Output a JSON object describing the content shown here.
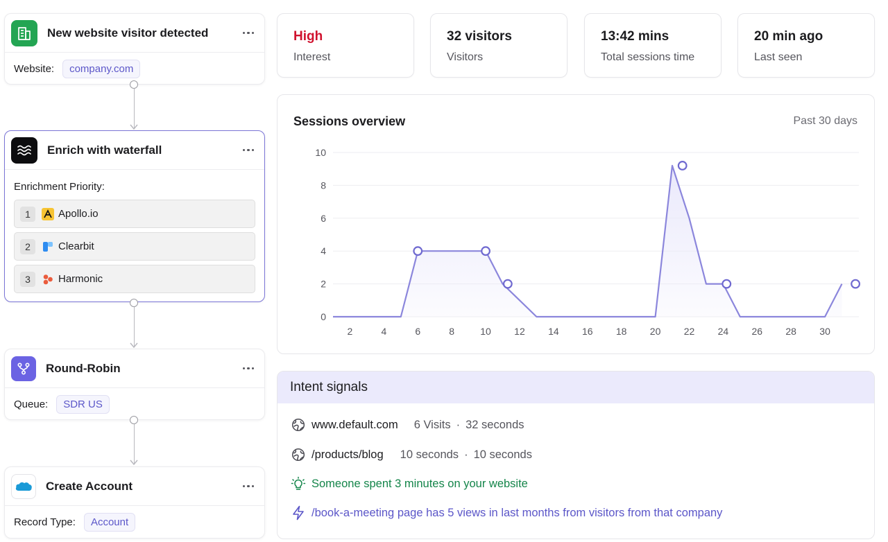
{
  "workflow": {
    "visitor": {
      "title": "New website visitor detected",
      "field_label": "Website:",
      "field_value": "company.com"
    },
    "enrich": {
      "title": "Enrich with waterfall",
      "priority_label": "Enrichment Priority:",
      "providers": [
        {
          "rank": "1",
          "name": "Apollo.io",
          "icon": "apollo-icon"
        },
        {
          "rank": "2",
          "name": "Clearbit",
          "icon": "clearbit-icon"
        },
        {
          "rank": "3",
          "name": "Harmonic",
          "icon": "harmonic-icon"
        }
      ]
    },
    "roundrobin": {
      "title": "Round-Robin",
      "field_label": "Queue:",
      "field_value": "SDR US"
    },
    "account": {
      "title": "Create Account",
      "field_label": "Record Type:",
      "field_value": "Account"
    }
  },
  "stats": [
    {
      "value": "High",
      "label": "Interest",
      "color": "#d0122e"
    },
    {
      "value": "32 visitors",
      "label": "Visitors"
    },
    {
      "value": "13:42 mins",
      "label": "Total sessions time"
    },
    {
      "value": "20 min ago",
      "label": "Last seen"
    }
  ],
  "sessions": {
    "title": "Sessions overview",
    "range": "Past 30 days"
  },
  "chart_data": {
    "type": "area",
    "title": "Sessions overview",
    "x": [
      1,
      2,
      3,
      4,
      5,
      6,
      7,
      8,
      9,
      10,
      11,
      12,
      13,
      14,
      15,
      16,
      17,
      18,
      19,
      20,
      21,
      22,
      23,
      24,
      25,
      26,
      27,
      28,
      29,
      30,
      31
    ],
    "values": [
      0,
      0,
      0,
      0,
      0,
      4,
      4,
      4,
      4,
      4,
      2,
      1,
      0,
      0,
      0,
      0,
      0,
      0,
      0,
      0,
      9.2,
      6,
      2,
      2,
      0,
      0,
      0,
      0,
      0,
      0,
      2
    ],
    "highlighted_points": [
      {
        "x": 6,
        "y": 4
      },
      {
        "x": 10,
        "y": 4
      },
      {
        "x": 11.3,
        "y": 2
      },
      {
        "x": 21.6,
        "y": 9.2
      },
      {
        "x": 24.2,
        "y": 2
      },
      {
        "x": 31.8,
        "y": 2
      }
    ],
    "xticks": [
      2,
      4,
      6,
      8,
      10,
      12,
      14,
      16,
      18,
      20,
      22,
      24,
      26,
      28,
      30
    ],
    "yticks": [
      0,
      2,
      4,
      6,
      8,
      10
    ],
    "ylim": [
      0,
      10
    ],
    "xlim": [
      1,
      32
    ],
    "grid": true,
    "colors": {
      "line": "#8b86dc",
      "fill": "#e9e8fb",
      "marker": "#6f69d0"
    }
  },
  "intent": {
    "title": "Intent signals",
    "pages": [
      {
        "path": "www.default.com",
        "metric1": "6 Visits",
        "metric2": "32 seconds",
        "icon": "globe-icon"
      },
      {
        "path": "/products/blog",
        "metric1": "10 seconds",
        "metric2": "10 seconds",
        "icon": "globe-icon"
      }
    ],
    "insight": "Someone spent 3 minutes on your website",
    "alert": "/book-a-meeting page has 5 views in last months from visitors from that company"
  },
  "colors": {
    "accent": "#6a64d4",
    "success": "#14854a",
    "danger": "#d0122e"
  }
}
